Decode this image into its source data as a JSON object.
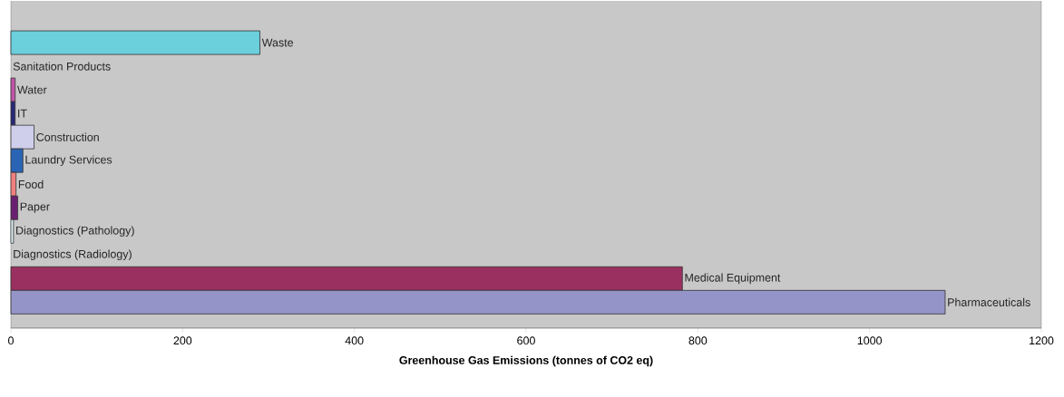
{
  "chart_data": {
    "type": "bar",
    "orientation": "horizontal",
    "xlabel": "Greenhouse Gas Emissions (tonnes of CO2 eq)",
    "categories": [
      "Waste",
      "Sanitation Products",
      "Water",
      "IT",
      "Construction",
      "Laundry Services",
      "Food",
      "Paper",
      "Diagnostics (Pathology)",
      "Diagnostics (Radiology)",
      "Medical Equipment",
      "Pharmaceuticals"
    ],
    "values": [
      290,
      0,
      5,
      5,
      27,
      14,
      6,
      8,
      3,
      0,
      782,
      1088
    ],
    "colors": [
      "#6bcfdc",
      null,
      "#c054a8",
      "#282878",
      "#cfcfec",
      "#2a64b4",
      "#f08080",
      "#6a2070",
      "#e0f4f8",
      null,
      "#9a3060",
      "#9494c8"
    ],
    "xlim": [
      0,
      1200
    ],
    "xticks": [
      0,
      200,
      400,
      600,
      800,
      1000,
      1200
    ],
    "tick_labels": "x"
  }
}
